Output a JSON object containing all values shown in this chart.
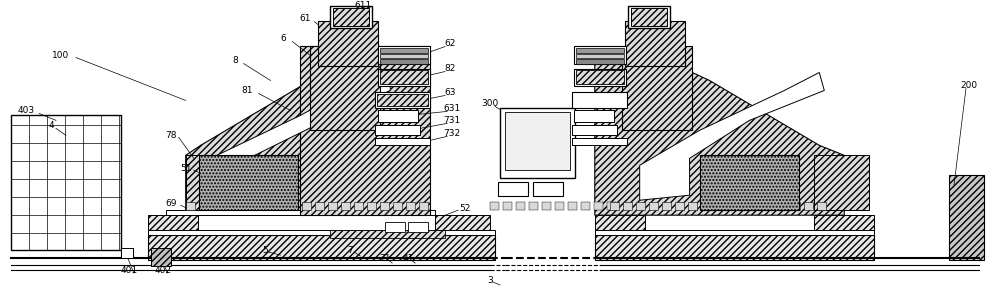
{
  "bg_color": "#ffffff",
  "fig_width": 10.0,
  "fig_height": 2.97,
  "dpi": 100
}
